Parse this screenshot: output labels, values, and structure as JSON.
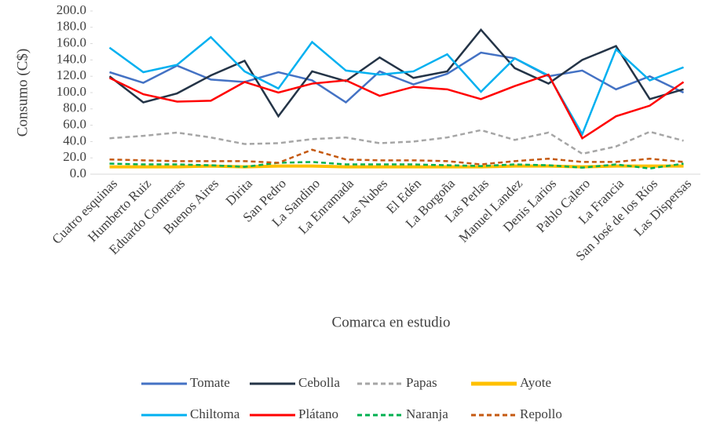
{
  "chart_data": {
    "type": "line",
    "y_label": "Consumo (C$)",
    "x_label": "Comarca en estudio",
    "categories": [
      "Cuatro esquinas",
      "Humberto Ruiz",
      "Eduardo Contreras",
      "Buenos Aires",
      "Dirita",
      "San Pedro",
      "La Sandino",
      "La Enramada",
      "Las Nubes",
      "El Edén",
      "La Borgoña",
      "Las Perlas",
      "Manuel Landez",
      "Denis Larios",
      "Pablo Calero",
      "La Francia",
      "San José de los Ríos",
      "Las Dispersas"
    ],
    "ylim": [
      0,
      200
    ],
    "yticks": [
      {
        "value": 0,
        "label": "0.0"
      },
      {
        "value": 20,
        "label": "20.0"
      },
      {
        "value": 40,
        "label": "40.0"
      },
      {
        "value": 60,
        "label": "60.0"
      },
      {
        "value": 80,
        "label": "80.0"
      },
      {
        "value": 100,
        "label": "100.0"
      },
      {
        "value": 120,
        "label": "120.0"
      },
      {
        "value": 140,
        "label": "140.0"
      },
      {
        "value": 160,
        "label": "160.0"
      },
      {
        "value": 180,
        "label": "180.0"
      },
      {
        "value": 200,
        "label": "200.0"
      }
    ],
    "series": [
      {
        "name": "Tomate",
        "color": "#4472c4",
        "dash": false,
        "values": [
          125,
          112,
          133,
          116,
          113,
          125,
          115,
          88,
          126,
          110,
          123,
          149,
          142,
          120,
          127,
          104,
          120,
          100
        ]
      },
      {
        "name": "Cebolla",
        "color": "#243447",
        "dash": false,
        "values": [
          120,
          88,
          99,
          121,
          139,
          71,
          126,
          114,
          143,
          118,
          126,
          177,
          130,
          111,
          140,
          157,
          92,
          104
        ]
      },
      {
        "name": "Papas",
        "color": "#a6a6a6",
        "dash": true,
        "values": [
          44,
          47,
          51,
          45,
          37,
          38,
          43,
          45,
          38,
          40,
          45,
          54,
          42,
          51,
          25,
          34,
          52,
          41
        ]
      },
      {
        "name": "Ayote",
        "color": "#ffc000",
        "dash": false,
        "values": [
          9,
          9,
          9,
          10,
          9,
          10,
          10,
          9,
          9,
          9,
          9,
          9,
          10,
          10,
          9,
          10,
          10,
          10
        ]
      },
      {
        "name": "Chiltoma",
        "color": "#00b0f0",
        "dash": false,
        "values": [
          155,
          125,
          134,
          168,
          126,
          105,
          162,
          127,
          122,
          126,
          147,
          101,
          142,
          121,
          49,
          153,
          115,
          131
        ]
      },
      {
        "name": "Plátano",
        "color": "#ff0000",
        "dash": false,
        "values": [
          118,
          98,
          89,
          90,
          113,
          100,
          111,
          115,
          96,
          107,
          104,
          92,
          108,
          122,
          44,
          71,
          84,
          113
        ]
      },
      {
        "name": "Naranja",
        "color": "#00b050",
        "dash": true,
        "values": [
          13,
          12,
          12,
          11,
          9,
          14,
          15,
          12,
          12,
          12,
          11,
          10,
          12,
          11,
          8,
          12,
          7,
          13
        ]
      },
      {
        "name": "Repollo",
        "color": "#c55a11",
        "dash": true,
        "values": [
          18,
          17,
          16,
          16,
          16,
          14,
          30,
          18,
          17,
          17,
          16,
          12,
          16,
          19,
          15,
          15,
          19,
          15
        ]
      }
    ]
  }
}
